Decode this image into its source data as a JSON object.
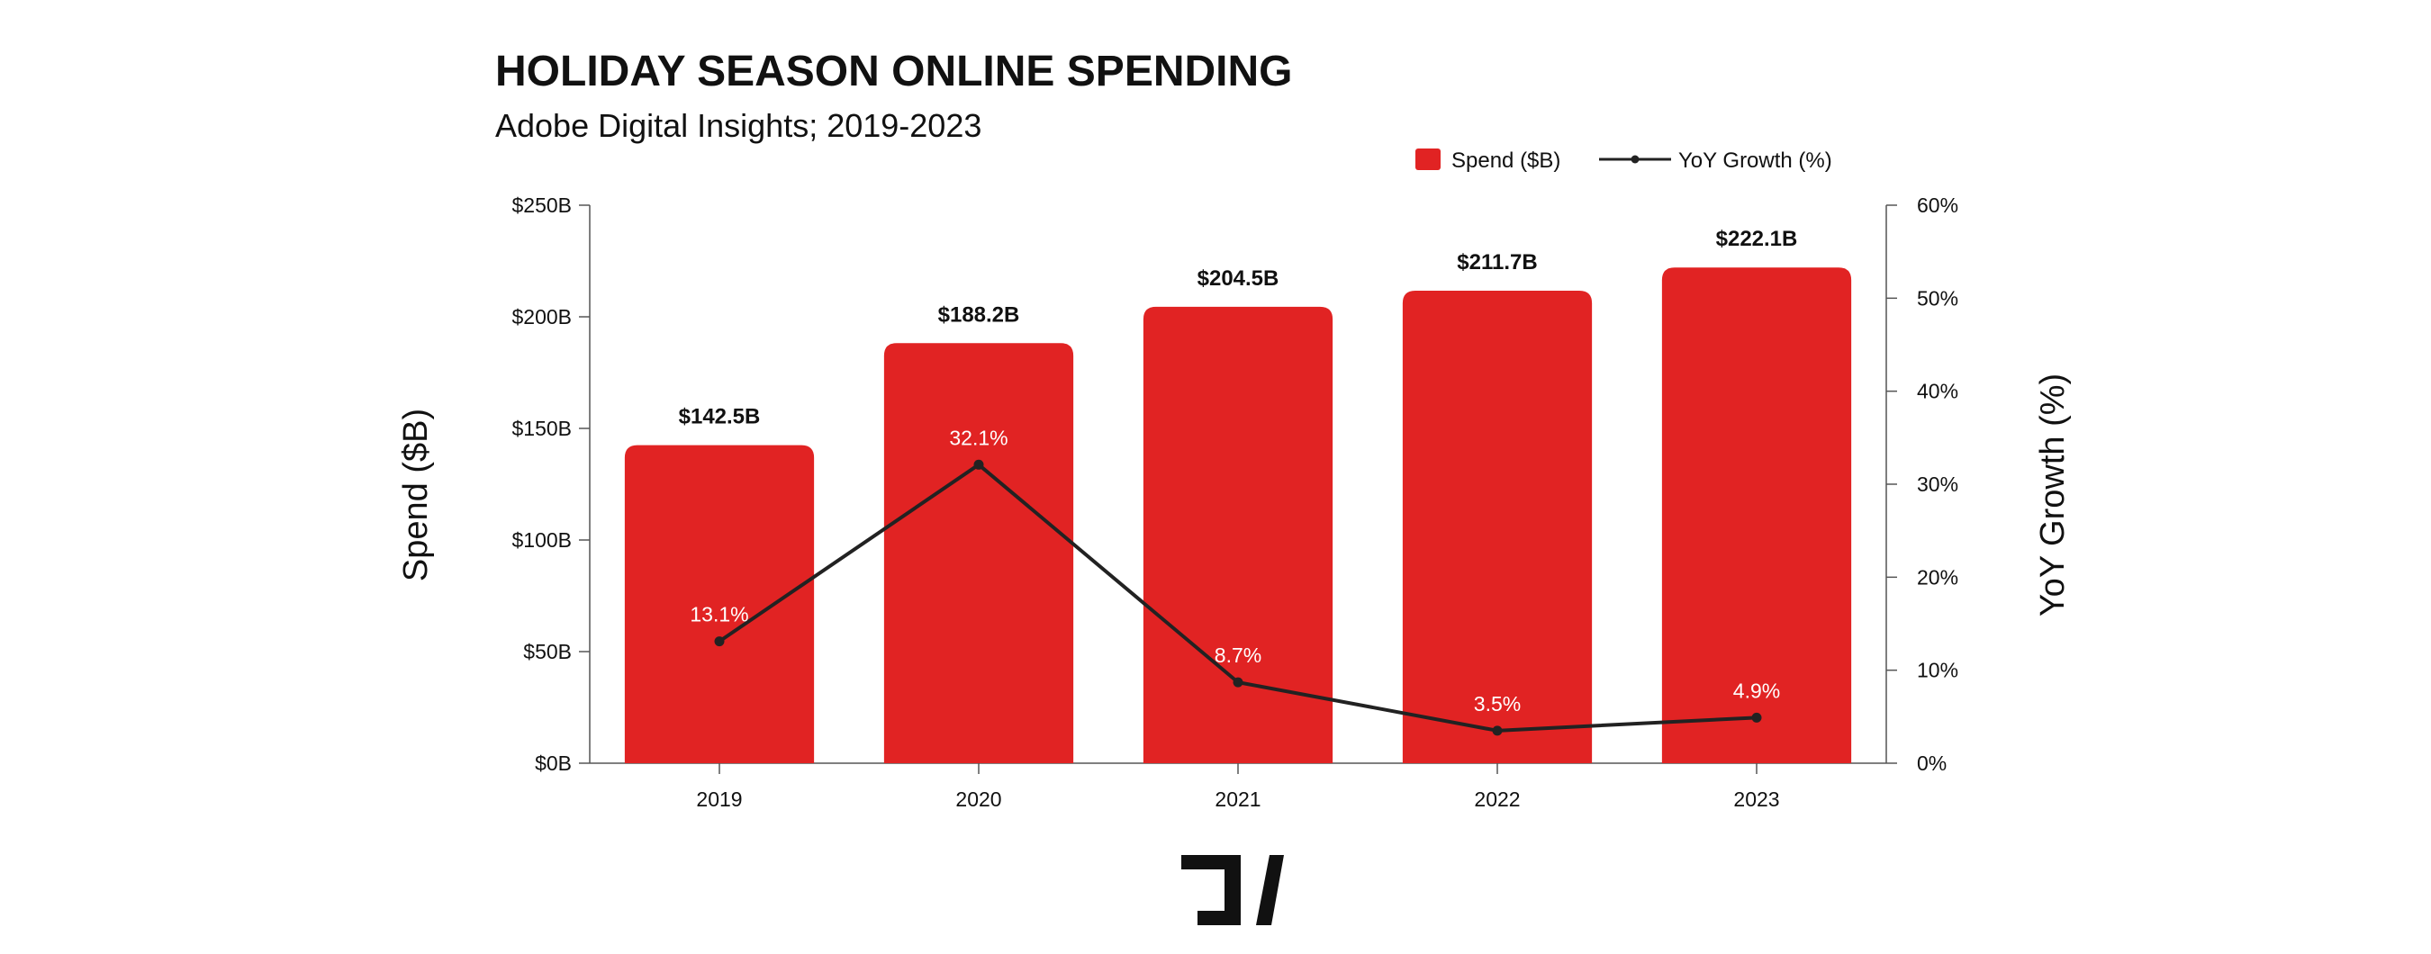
{
  "chart_data": {
    "type": "bar",
    "title": "HOLIDAY SEASON ONLINE SPENDING",
    "subtitle": "Adobe Digital Insights; 2019-2023",
    "categories": [
      "2019",
      "2020",
      "2021",
      "2022",
      "2023"
    ],
    "series": [
      {
        "name": "Spend ($B)",
        "type": "bar",
        "axis": "left",
        "color": "#E12323",
        "values": [
          142.5,
          188.2,
          204.5,
          211.7,
          222.1
        ],
        "value_labels": [
          "$142.5B",
          "$188.2B",
          "$204.5B",
          "$211.7B",
          "$222.1B"
        ]
      },
      {
        "name": "YoY Growth (%)",
        "type": "line",
        "axis": "right",
        "color": "#222222",
        "values": [
          13.1,
          32.1,
          8.7,
          3.5,
          4.9
        ],
        "value_labels": [
          "13.1%",
          "32.1%",
          "8.7%",
          "3.5%",
          "4.9%"
        ]
      }
    ],
    "ylabel": "Spend ($B)",
    "y2label": "YoY Growth (%)",
    "ylim": [
      0,
      250
    ],
    "y2lim": [
      0,
      60
    ],
    "yticks": [
      0,
      50,
      100,
      150,
      200,
      250
    ],
    "ytick_labels": [
      "$0B",
      "$50B",
      "$100B",
      "$150B",
      "$200B",
      "$250B"
    ],
    "y2ticks": [
      0,
      10,
      20,
      30,
      40,
      50,
      60
    ],
    "y2tick_labels": [
      "0%",
      "10%",
      "20%",
      "30%",
      "40%",
      "50%",
      "60%"
    ],
    "legend": {
      "placement": "top-right",
      "entries": [
        "Spend ($B)",
        "YoY Growth (%)"
      ]
    },
    "grid": false
  },
  "logo": {
    "icon": "brand-logo-icon"
  }
}
